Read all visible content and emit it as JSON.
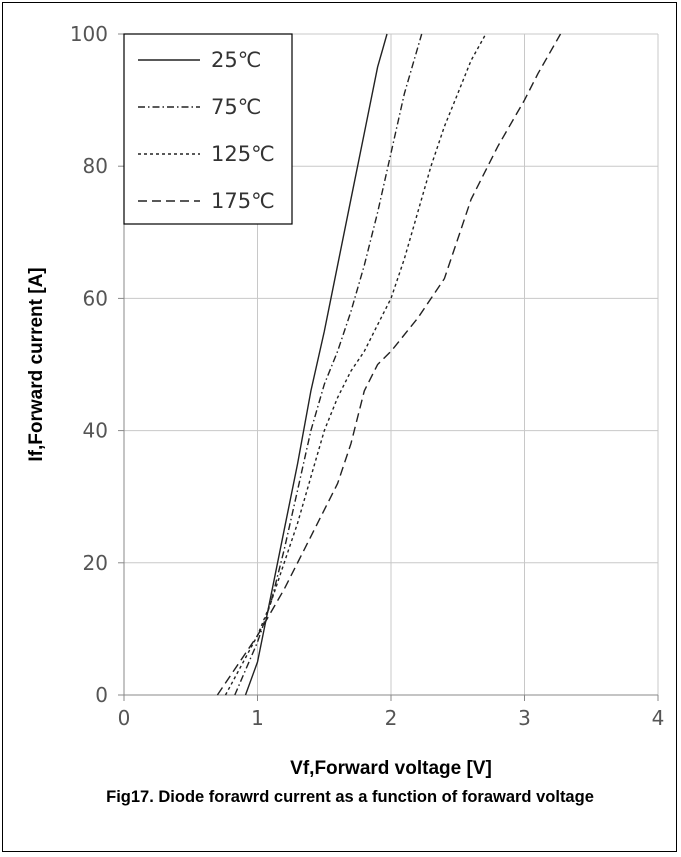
{
  "chart_data": {
    "type": "line",
    "title": "",
    "xlabel": "Vf,Forward voltage [V]",
    "ylabel": "If,Forward current [A]",
    "xlim": [
      0,
      4
    ],
    "ylim": [
      0,
      100
    ],
    "x_ticks": [
      "0",
      "1",
      "2",
      "3",
      "4"
    ],
    "y_ticks": [
      "0",
      "20",
      "40",
      "60",
      "80",
      "100"
    ],
    "grid": true,
    "legend_position": "top-left",
    "series": [
      {
        "name": "25℃",
        "dash": "solid",
        "x": [
          0.91,
          1.0,
          1.05,
          1.1,
          1.2,
          1.3,
          1.4,
          1.5,
          1.6,
          1.7,
          1.8,
          1.9,
          1.97
        ],
        "y": [
          0,
          5,
          10,
          15,
          25,
          35,
          46,
          55,
          65,
          75,
          85,
          95,
          100
        ]
      },
      {
        "name": "75℃",
        "dash": "dash-dot",
        "x": [
          0.83,
          1.0,
          1.1,
          1.2,
          1.3,
          1.4,
          1.5,
          1.6,
          1.7,
          1.8,
          1.9,
          2.0,
          2.1,
          2.23
        ],
        "y": [
          0,
          8,
          14,
          22,
          31,
          40,
          47,
          52,
          58,
          65,
          73,
          82,
          91,
          100
        ]
      },
      {
        "name": "125℃",
        "dash": "dotted",
        "x": [
          0.76,
          1.0,
          1.1,
          1.2,
          1.3,
          1.4,
          1.5,
          1.6,
          1.7,
          1.8,
          1.9,
          2.0,
          2.1,
          2.2,
          2.3,
          2.4,
          2.5,
          2.6,
          2.71
        ],
        "y": [
          0,
          9,
          14,
          20,
          26,
          33,
          40,
          45,
          49,
          52,
          56,
          60,
          66,
          73,
          80,
          86,
          91,
          96,
          100
        ]
      },
      {
        "name": "175℃",
        "dash": "dashed",
        "x": [
          0.7,
          1.0,
          1.2,
          1.4,
          1.6,
          1.7,
          1.8,
          1.9,
          2.0,
          2.2,
          2.4,
          2.5,
          2.6,
          2.8,
          3.0,
          3.1,
          3.27
        ],
        "y": [
          0,
          9,
          16,
          24,
          32,
          38,
          46,
          50,
          52,
          57,
          63,
          69,
          75,
          83,
          90,
          94,
          100
        ]
      }
    ]
  },
  "caption": "Fig17. Diode forawrd current as a function of foraward voltage"
}
